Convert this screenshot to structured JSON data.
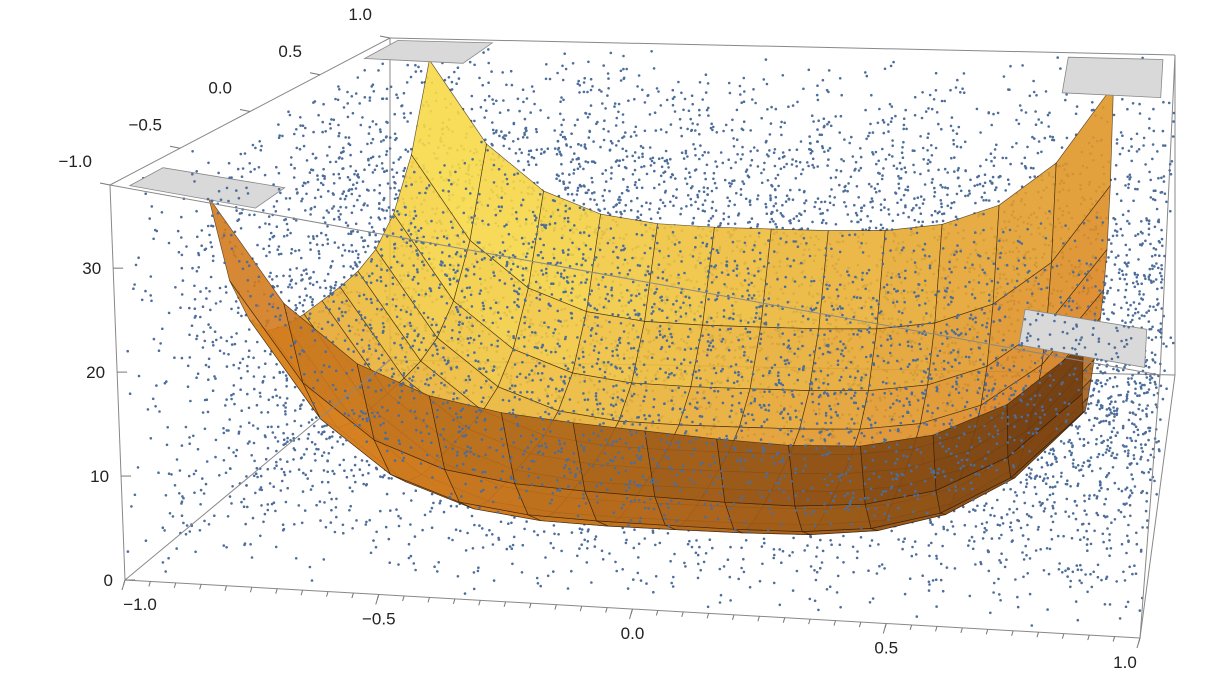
{
  "chart_data": {
    "type": "scatter",
    "subtype": "3d-surface-with-point-cloud",
    "title": "",
    "xlabel": "",
    "ylabel": "",
    "zlabel": "",
    "x_ticks": [
      "−1.0",
      "−0.5",
      "0.0",
      "0.5",
      "1.0"
    ],
    "y_ticks": [
      "−1.0",
      "−0.5",
      "0.0",
      "0.5",
      "1.0"
    ],
    "z_ticks": [
      "0",
      "10",
      "20",
      "30"
    ],
    "xlim": [
      -1,
      1
    ],
    "ylim": [
      -1,
      1
    ],
    "zlim": [
      0,
      38
    ],
    "surface": {
      "description_formula": "z = 38*(x^4 + y^4)/2 approx (quartic bowl)",
      "grid_min": -0.85,
      "grid_max": 0.85,
      "grid_steps": 12,
      "z_at_corners": 37,
      "z_at_center": 0
    },
    "point_cloud": {
      "count": 9000,
      "color": "#4d6d9a",
      "x_range": [
        -1,
        1
      ],
      "y_range": [
        -1,
        1
      ],
      "z_noise_range": [
        0,
        38
      ]
    },
    "colors": {
      "surface_light": "#f7d948",
      "surface_mid": "#d8801f",
      "surface_dark": "#5a2f0e",
      "points": "#4d6d9a",
      "cap": "#d9d9d9"
    }
  }
}
